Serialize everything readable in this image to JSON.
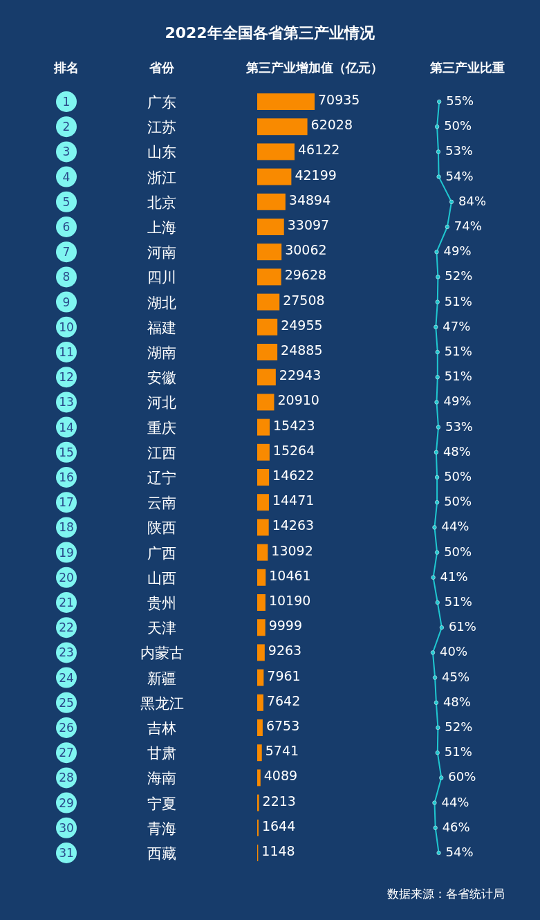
{
  "chart_data": [
    {
      "type": "bar",
      "orientation": "horizontal",
      "title": "2022年全国各省第三产业情况",
      "ylabel": "省份",
      "xlabel": "第三产业增加值（亿元）",
      "color": "#f98a00",
      "data_labels": true,
      "categories": [
        "广东",
        "江苏",
        "山东",
        "浙江",
        "北京",
        "上海",
        "河南",
        "四川",
        "湖北",
        "福建",
        "湖南",
        "安徽",
        "河北",
        "重庆",
        "江西",
        "辽宁",
        "云南",
        "陕西",
        "广西",
        "山西",
        "贵州",
        "天津",
        "内蒙古",
        "新疆",
        "黑龙江",
        "吉林",
        "甘肃",
        "海南",
        "宁夏",
        "青海",
        "西藏"
      ],
      "values": [
        70935,
        62028,
        46122,
        42199,
        34894,
        33097,
        30062,
        29628,
        27508,
        24955,
        24885,
        22943,
        20910,
        15423,
        15264,
        14622,
        14471,
        14263,
        13092,
        10461,
        10190,
        9999,
        9263,
        7961,
        7642,
        6753,
        5741,
        4089,
        2213,
        1644,
        1148
      ]
    },
    {
      "type": "line",
      "orientation": "horizontal",
      "ylabel": "排名",
      "xlabel": "第三产业比重",
      "color": "#1fc7d0",
      "marker": "circle",
      "categories": [
        "1",
        "2",
        "3",
        "4",
        "5",
        "6",
        "7",
        "8",
        "9",
        "10",
        "11",
        "12",
        "13",
        "14",
        "15",
        "16",
        "17",
        "18",
        "19",
        "20",
        "21",
        "22",
        "23",
        "24",
        "25",
        "26",
        "27",
        "28",
        "29",
        "30",
        "31"
      ],
      "values": [
        55,
        50,
        53,
        54,
        84,
        74,
        49,
        52,
        51,
        47,
        51,
        51,
        49,
        53,
        48,
        50,
        50,
        44,
        50,
        41,
        51,
        61,
        40,
        45,
        48,
        52,
        51,
        60,
        44,
        46,
        54
      ],
      "value_labels": [
        "55%",
        "50%",
        "53%",
        "54%",
        "84%",
        "74%",
        "49%",
        "52%",
        "51%",
        "47%",
        "51%",
        "51%",
        "49%",
        "53%",
        "48%",
        "50%",
        "50%",
        "44%",
        "50%",
        "41%",
        "51%",
        "61%",
        "40%",
        "45%",
        "48%",
        "52%",
        "51%",
        "60%",
        "44%",
        "46%",
        "54%"
      ],
      "annotations": [
        "数据来源：各省统计局"
      ]
    }
  ]
}
